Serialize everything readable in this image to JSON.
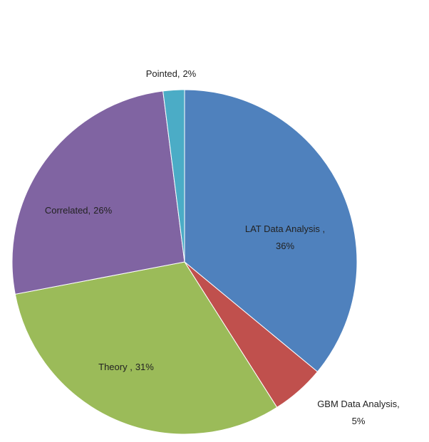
{
  "chart_data": {
    "type": "pie",
    "categories": [
      "LAT Data Analysis ,",
      "GBM Data Analysis,",
      "Theory ,",
      "Correlated,",
      "Pointed,"
    ],
    "values": [
      36,
      5,
      31,
      26,
      2
    ],
    "value_labels": [
      "36%",
      "5%",
      "31%",
      "26%",
      "2%"
    ],
    "colors": [
      "#4f81bd",
      "#c0504d",
      "#9bbb59",
      "#8064a2",
      "#4bacc6"
    ]
  }
}
